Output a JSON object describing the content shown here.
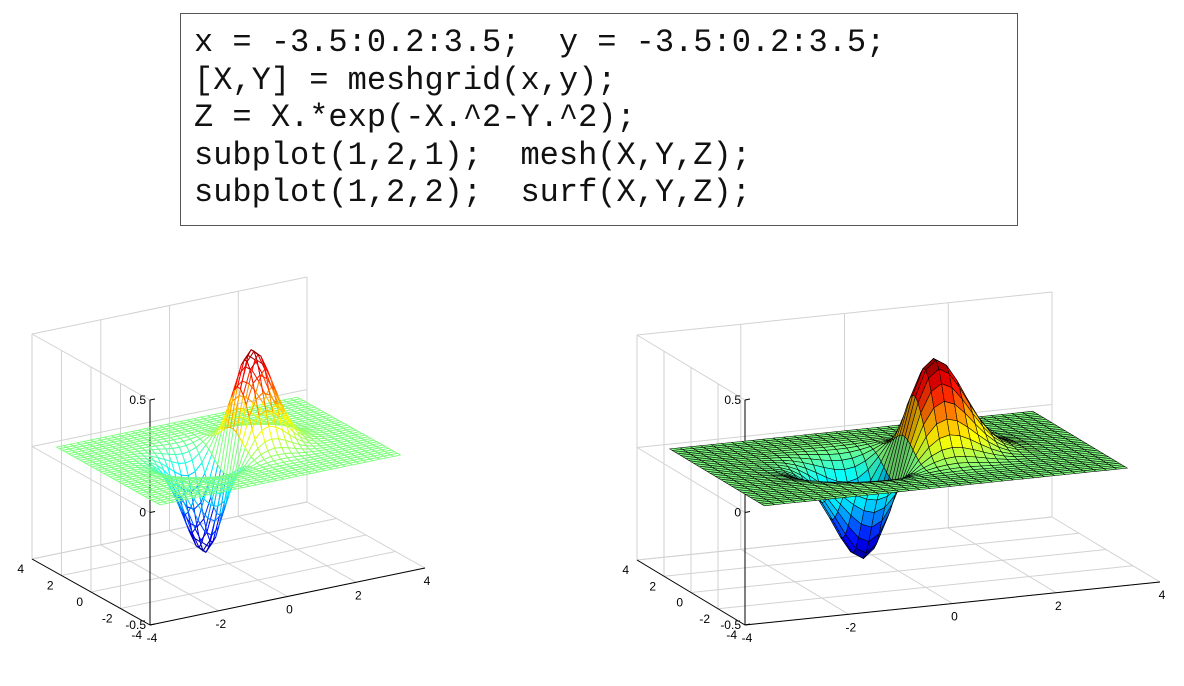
{
  "code": {
    "lines": [
      "x = -3.5:0.2:3.5;  y = -3.5:0.2:3.5;",
      "[X,Y] = meshgrid(x,y);",
      "Z = X.*exp(-X.^2-Y.^2);",
      "subplot(1,2,1);  mesh(X,Y,Z);",
      "subplot(1,2,2);  surf(X,Y,Z);"
    ]
  },
  "chart_data": [
    {
      "type": "mesh",
      "function": "Z = X.*exp(-X.^2-Y.^2)",
      "x_range": [
        -3.5,
        3.5
      ],
      "x_step": 0.2,
      "y_range": [
        -3.5,
        3.5
      ],
      "y_step": 0.2,
      "xlim": [
        -4,
        4
      ],
      "ylim": [
        -4,
        4
      ],
      "zlim": [
        -0.5,
        0.5
      ],
      "xticks": [
        "-4",
        "-2",
        "0",
        "2",
        "4"
      ],
      "yticks": [
        "-4",
        "-2",
        "0",
        "2",
        "4"
      ],
      "zticks": [
        "-0.5",
        "0",
        "0.5"
      ],
      "grid": true,
      "colormap": "jet",
      "peak": {
        "x": 0.7,
        "y": 0,
        "z": 0.43
      },
      "trough": {
        "x": -0.7,
        "y": 0,
        "z": -0.43
      }
    },
    {
      "type": "surf",
      "function": "Z = X.*exp(-X.^2-Y.^2)",
      "x_range": [
        -3.5,
        3.5
      ],
      "x_step": 0.2,
      "y_range": [
        -3.5,
        3.5
      ],
      "y_step": 0.2,
      "xlim": [
        -4,
        4
      ],
      "ylim": [
        -4,
        4
      ],
      "zlim": [
        -0.5,
        0.5
      ],
      "xticks": [
        "-4",
        "-2",
        "0",
        "2",
        "4"
      ],
      "yticks": [
        "-4",
        "-2",
        "0",
        "2",
        "4"
      ],
      "zticks": [
        "-0.5",
        "0",
        "0.5"
      ],
      "grid": true,
      "colormap": "jet",
      "peak": {
        "x": 0.7,
        "y": 0,
        "z": 0.43
      },
      "trough": {
        "x": -0.7,
        "y": 0,
        "z": -0.43
      }
    }
  ]
}
